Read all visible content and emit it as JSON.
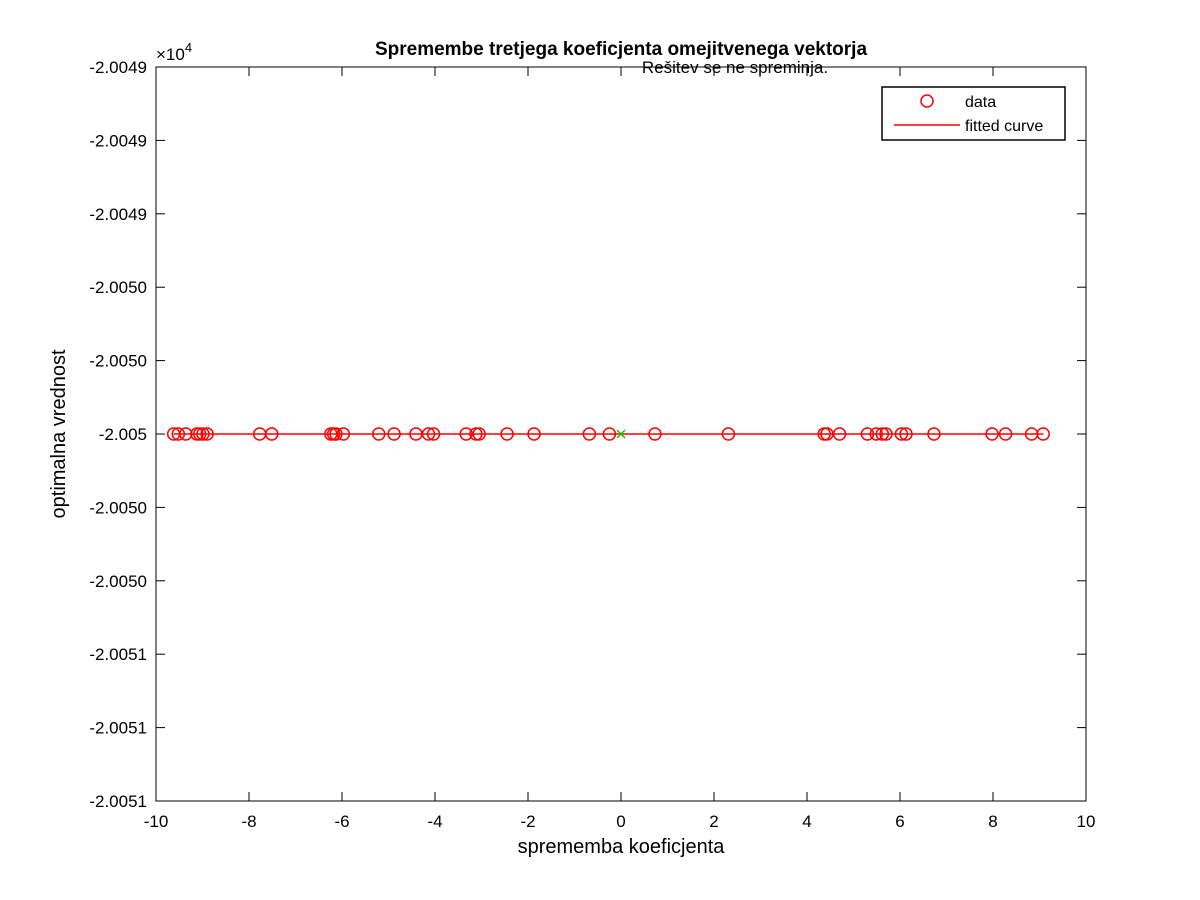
{
  "chart_data": {
    "type": "scatter",
    "title": "Spremembe tretjega koeficjenta omejitvenega vektorja",
    "annotation": "Rešitev se ne spreminja.",
    "xlabel": "sprememba koeficjenta",
    "ylabel": "optimalna vrednost",
    "y_exponent": "×10",
    "y_exponent_power": "4",
    "xlim": [
      -10,
      10
    ],
    "ylim": [
      -2.0051,
      -2.0049
    ],
    "x_ticks": [
      {
        "value": -10,
        "label": "-10"
      },
      {
        "value": -8,
        "label": "-8"
      },
      {
        "value": -6,
        "label": "-6"
      },
      {
        "value": -4,
        "label": "-4"
      },
      {
        "value": -2,
        "label": "-2"
      },
      {
        "value": 0,
        "label": "0"
      },
      {
        "value": 2,
        "label": "2"
      },
      {
        "value": 4,
        "label": "4"
      },
      {
        "value": 6,
        "label": "6"
      },
      {
        "value": 8,
        "label": "8"
      },
      {
        "value": 10,
        "label": "10"
      }
    ],
    "y_ticks": [
      {
        "value": -2.0049,
        "label": "-2.0049"
      },
      {
        "value": -2.00492,
        "label": "-2.0049"
      },
      {
        "value": -2.00494,
        "label": "-2.0049"
      },
      {
        "value": -2.00496,
        "label": "-2.0050"
      },
      {
        "value": -2.00498,
        "label": "-2.0050"
      },
      {
        "value": -2.005,
        "label": "-2.005"
      },
      {
        "value": -2.00502,
        "label": "-2.0050"
      },
      {
        "value": -2.00504,
        "label": "-2.0050"
      },
      {
        "value": -2.00506,
        "label": "-2.0051"
      },
      {
        "value": -2.00508,
        "label": "-2.0051"
      },
      {
        "value": -2.0051,
        "label": "-2.0051"
      }
    ],
    "grid": false,
    "legend_position": "top-right",
    "series": [
      {
        "name": "data",
        "kind": "scatter",
        "marker": "circle",
        "color": "#ff0000",
        "y": -2.005,
        "x": [
          -9.62,
          -9.52,
          -9.36,
          -9.12,
          -9.06,
          -8.99,
          -8.9,
          -7.77,
          -7.51,
          -6.24,
          -6.18,
          -6.13,
          -5.97,
          -5.21,
          -4.88,
          -4.41,
          -4.14,
          -4.03,
          -3.33,
          -3.12,
          -3.05,
          -2.45,
          -1.87,
          -0.68,
          -0.25,
          0.73,
          2.31,
          4.37,
          4.43,
          4.7,
          5.3,
          5.49,
          5.62,
          5.7,
          6.03,
          6.13,
          6.73,
          7.98,
          8.27,
          8.83,
          9.08
        ]
      },
      {
        "name": "fitted curve",
        "kind": "line",
        "color": "#ff0000",
        "x": [
          -9.62,
          9.08
        ],
        "y": [
          -2.005,
          -2.005
        ]
      }
    ],
    "highlight_point": {
      "x": 0,
      "y": -2.005,
      "marker": "x",
      "color": "#00cc00"
    }
  }
}
